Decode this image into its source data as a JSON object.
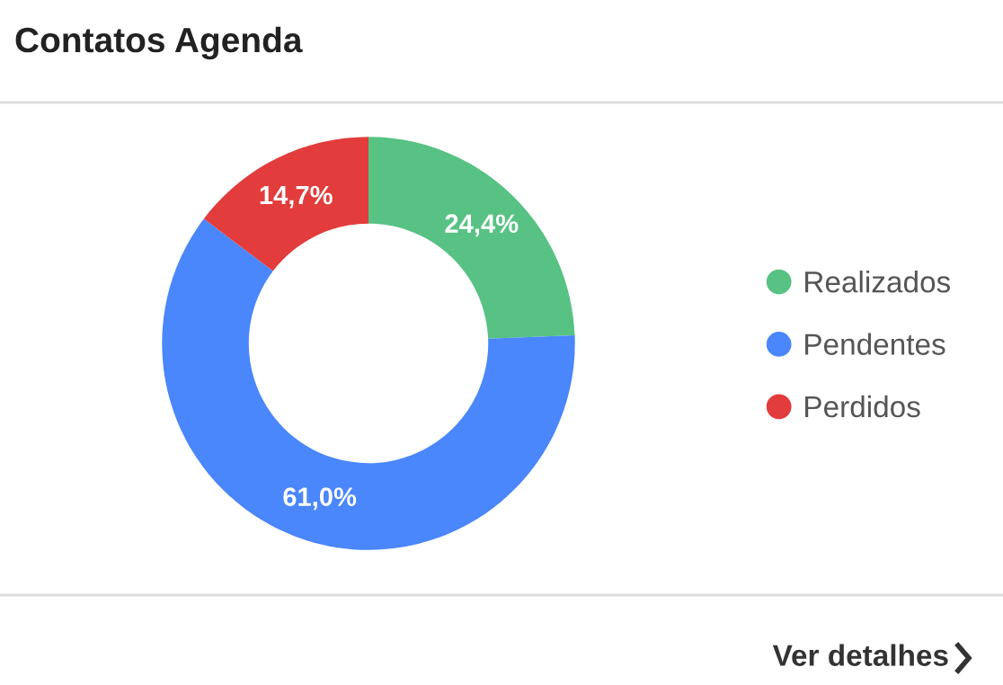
{
  "chart_data": {
    "type": "donut",
    "title": "Contatos Agenda",
    "categories": [
      "Realizados",
      "Pendentes",
      "Perdidos"
    ],
    "values": [
      24.4,
      61.0,
      14.7
    ],
    "value_labels": [
      "24,4%",
      "61,0%",
      "14,7%"
    ],
    "colors": [
      "#57c283",
      "#4a86fc",
      "#e23c3c"
    ],
    "legend": "right",
    "annotations": [
      "Ver detalhes"
    ]
  }
}
